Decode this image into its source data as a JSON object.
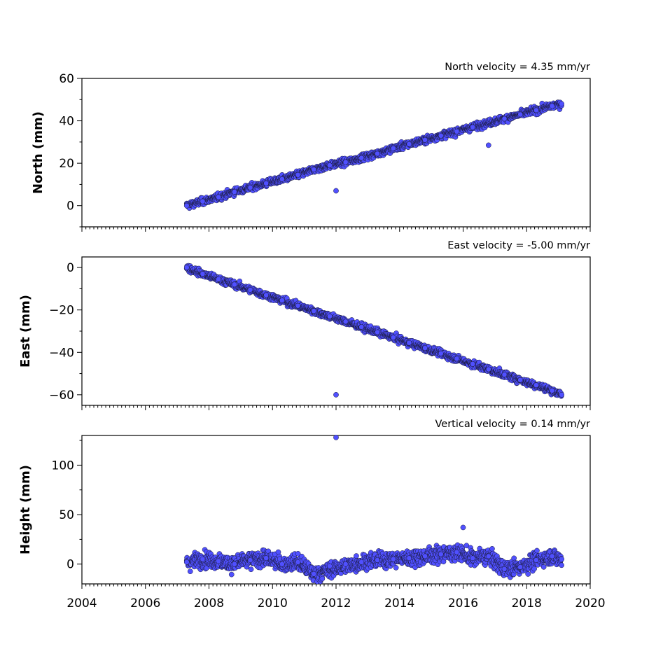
{
  "chart_data": [
    {
      "type": "scatter",
      "title": "North velocity = 4.35 mm/yr",
      "xlabel": "",
      "ylabel": "North (mm)",
      "xlim": [
        2004,
        2020
      ],
      "ylim": [
        -10,
        60
      ],
      "yticks": [
        0,
        20,
        40,
        60
      ],
      "grid": false,
      "series": [
        {
          "x": [
            2007.3,
            2007.8,
            2008.3,
            2008.8,
            2009.3,
            2009.8,
            2010.3,
            2010.8,
            2011.3,
            2011.8,
            2012.0,
            2012.3,
            2012.8,
            2013.3,
            2013.8,
            2014.3,
            2014.8,
            2015.3,
            2015.8,
            2016.3,
            2016.8,
            2017.3,
            2017.8,
            2018.3,
            2018.8,
            2019.1
          ],
          "y": [
            0,
            2,
            4,
            6.5,
            8.5,
            10.5,
            12.5,
            14.5,
            17,
            19,
            7,
            20.5,
            22.5,
            24.5,
            27,
            29,
            31,
            33,
            35,
            37,
            28.5,
            41,
            43,
            45,
            47,
            48
          ]
        }
      ]
    },
    {
      "type": "scatter",
      "title": "East velocity = -5.00 mm/yr",
      "xlabel": "",
      "ylabel": "East (mm)",
      "xlim": [
        2004,
        2020
      ],
      "ylim": [
        -65,
        5
      ],
      "yticks": [
        0,
        -20,
        -40,
        -60
      ],
      "ytick_labels": [
        "0",
        "−20",
        "−40",
        "−60"
      ],
      "grid": false,
      "series": [
        {
          "x": [
            2007.3,
            2007.8,
            2008.3,
            2008.8,
            2009.3,
            2009.8,
            2010.3,
            2010.8,
            2011.3,
            2011.8,
            2012.0,
            2012.3,
            2012.8,
            2013.3,
            2013.8,
            2014.3,
            2014.8,
            2015.3,
            2015.8,
            2016.3,
            2016.8,
            2017.3,
            2017.8,
            2018.3,
            2018.8,
            2019.1
          ],
          "y": [
            0,
            -3,
            -5.5,
            -8,
            -10.5,
            -13,
            -15.5,
            -18,
            -20.5,
            -23,
            -60,
            -25.5,
            -28,
            -30.5,
            -33,
            -35.5,
            -38,
            -40.5,
            -43,
            -45.5,
            -48,
            -50.5,
            -53,
            -55.5,
            -58,
            -60
          ]
        }
      ]
    },
    {
      "type": "scatter",
      "title": "Vertical velocity = 0.14 mm/yr",
      "xlabel": "",
      "ylabel": "Height (mm)",
      "xlim": [
        2004,
        2020
      ],
      "ylim": [
        -20,
        130
      ],
      "yticks": [
        0,
        50,
        100
      ],
      "xticks": [
        2004,
        2006,
        2008,
        2010,
        2012,
        2014,
        2016,
        2018,
        2020
      ],
      "grid": false,
      "series": [
        {
          "x": [
            2007.3,
            2007.8,
            2008.3,
            2008.8,
            2009.3,
            2009.8,
            2010.3,
            2010.8,
            2011.3,
            2011.8,
            2012.0,
            2012.3,
            2012.8,
            2013.3,
            2013.8,
            2014.3,
            2014.8,
            2015.3,
            2015.8,
            2016.0,
            2016.3,
            2016.8,
            2017.3,
            2017.8,
            2018.3,
            2018.8,
            2019.1
          ],
          "y": [
            2,
            5,
            3,
            0,
            4,
            6,
            0,
            2,
            -10,
            -2,
            128,
            0,
            2,
            4,
            5,
            6,
            8,
            10,
            12,
            37,
            6,
            8,
            -5,
            -3,
            4,
            8,
            5
          ]
        }
      ]
    }
  ],
  "colors": {
    "marker_fill": "#5050ff",
    "marker_edge": "#1a1a3a"
  }
}
